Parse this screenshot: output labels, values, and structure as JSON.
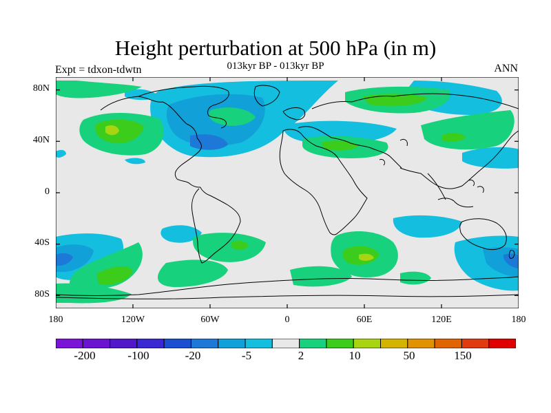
{
  "title": "Height perturbation at 500 hPa (in m)",
  "subtitle": "013kyr BP - 013kyr BP",
  "left_label": "Expt = tdxon-tdwtn",
  "right_label": "ANN",
  "axes": {
    "lat_labels": [
      "80N",
      "40N",
      "0",
      "40S",
      "80S"
    ],
    "lon_labels": [
      "180",
      "120W",
      "60W",
      "0",
      "60E",
      "120E",
      "180"
    ]
  },
  "colorbar": {
    "colors": [
      "#7a14d6",
      "#6a14d2",
      "#5018c8",
      "#3a28d2",
      "#1a4fd0",
      "#1e78d8",
      "#12a0d8",
      "#14bede",
      "#e8e8e8",
      "#17d17d",
      "#3ccc1c",
      "#a8d412",
      "#d4b400",
      "#e09200",
      "#e06400",
      "#e03a10",
      "#e00000"
    ],
    "labels": [
      "-200",
      "-100",
      "-20",
      "-5",
      "2",
      "10",
      "50",
      "150"
    ]
  },
  "colors": {
    "background": "#e8e8e8",
    "neg_light": "#14bede",
    "neg_mid": "#12a0d8",
    "neg_dark": "#1e78d8",
    "pos_light": "#17d17d",
    "pos_mid": "#3ccc1c",
    "pos_high": "#a8d412"
  }
}
